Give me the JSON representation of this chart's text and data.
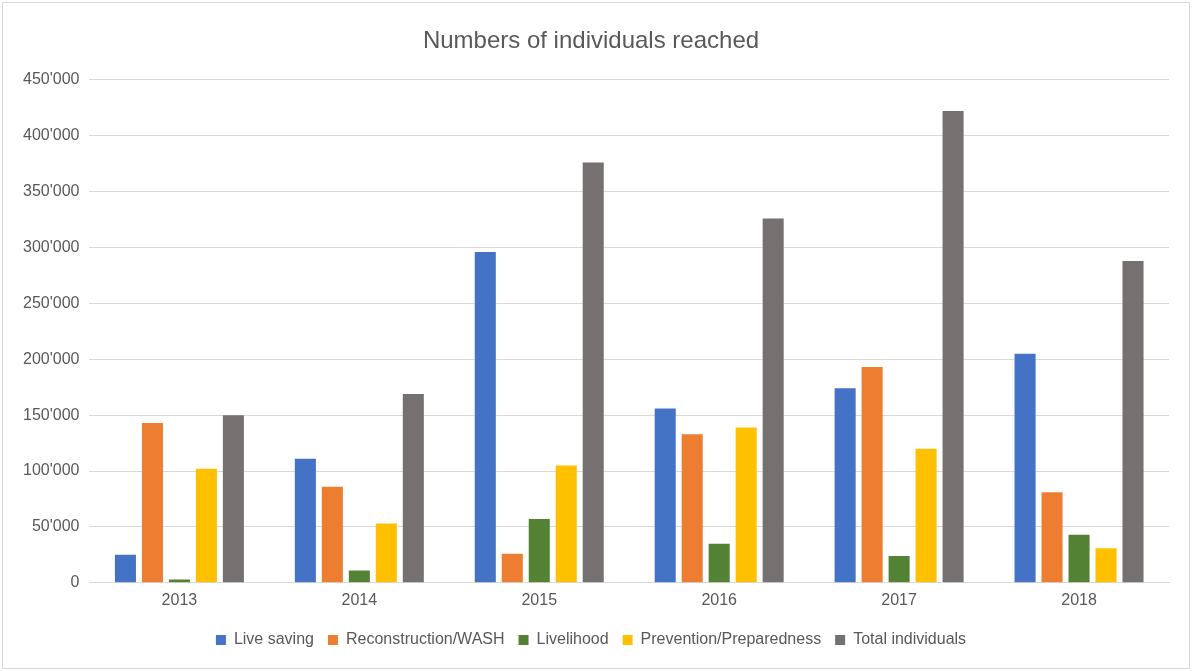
{
  "chart_data": {
    "type": "bar",
    "title": "Numbers of individuals reached",
    "categories": [
      "2013",
      "2014",
      "2015",
      "2016",
      "2017",
      "2018"
    ],
    "series": [
      {
        "name": "Live saving",
        "color": "#4472c4",
        "values": [
          25000,
          111000,
          296000,
          156000,
          174000,
          205000
        ]
      },
      {
        "name": "Reconstruction/WASH",
        "color": "#ed7d31",
        "values": [
          143000,
          86000,
          26000,
          133000,
          193000,
          81000
        ]
      },
      {
        "name": "Livelihood",
        "color": "#548235",
        "values": [
          3000,
          11000,
          57000,
          35000,
          24000,
          43000
        ]
      },
      {
        "name": "Prevention/Preparedness",
        "color": "#ffc000",
        "values": [
          102000,
          53000,
          105000,
          139000,
          120000,
          31000
        ]
      },
      {
        "name": "Total individuals",
        "color": "#767171",
        "values": [
          150000,
          169000,
          376000,
          326000,
          422000,
          288000
        ]
      }
    ],
    "ylim": [
      0,
      450000
    ],
    "yticks": [
      0,
      {
        "value": 50000,
        "label": "50'000"
      },
      {
        "value": 100000,
        "label": "100'000"
      },
      {
        "value": 150000,
        "label": "150'000"
      },
      {
        "value": 200000,
        "label": "200'000"
      },
      {
        "value": 250000,
        "label": "250'000"
      },
      {
        "value": 300000,
        "label": "300'000"
      },
      {
        "value": 350000,
        "label": "350'000"
      },
      {
        "value": 400000,
        "label": "400'000"
      },
      {
        "value": 450000,
        "label": "450'000"
      }
    ],
    "grid": "y",
    "legend": "bottom"
  }
}
